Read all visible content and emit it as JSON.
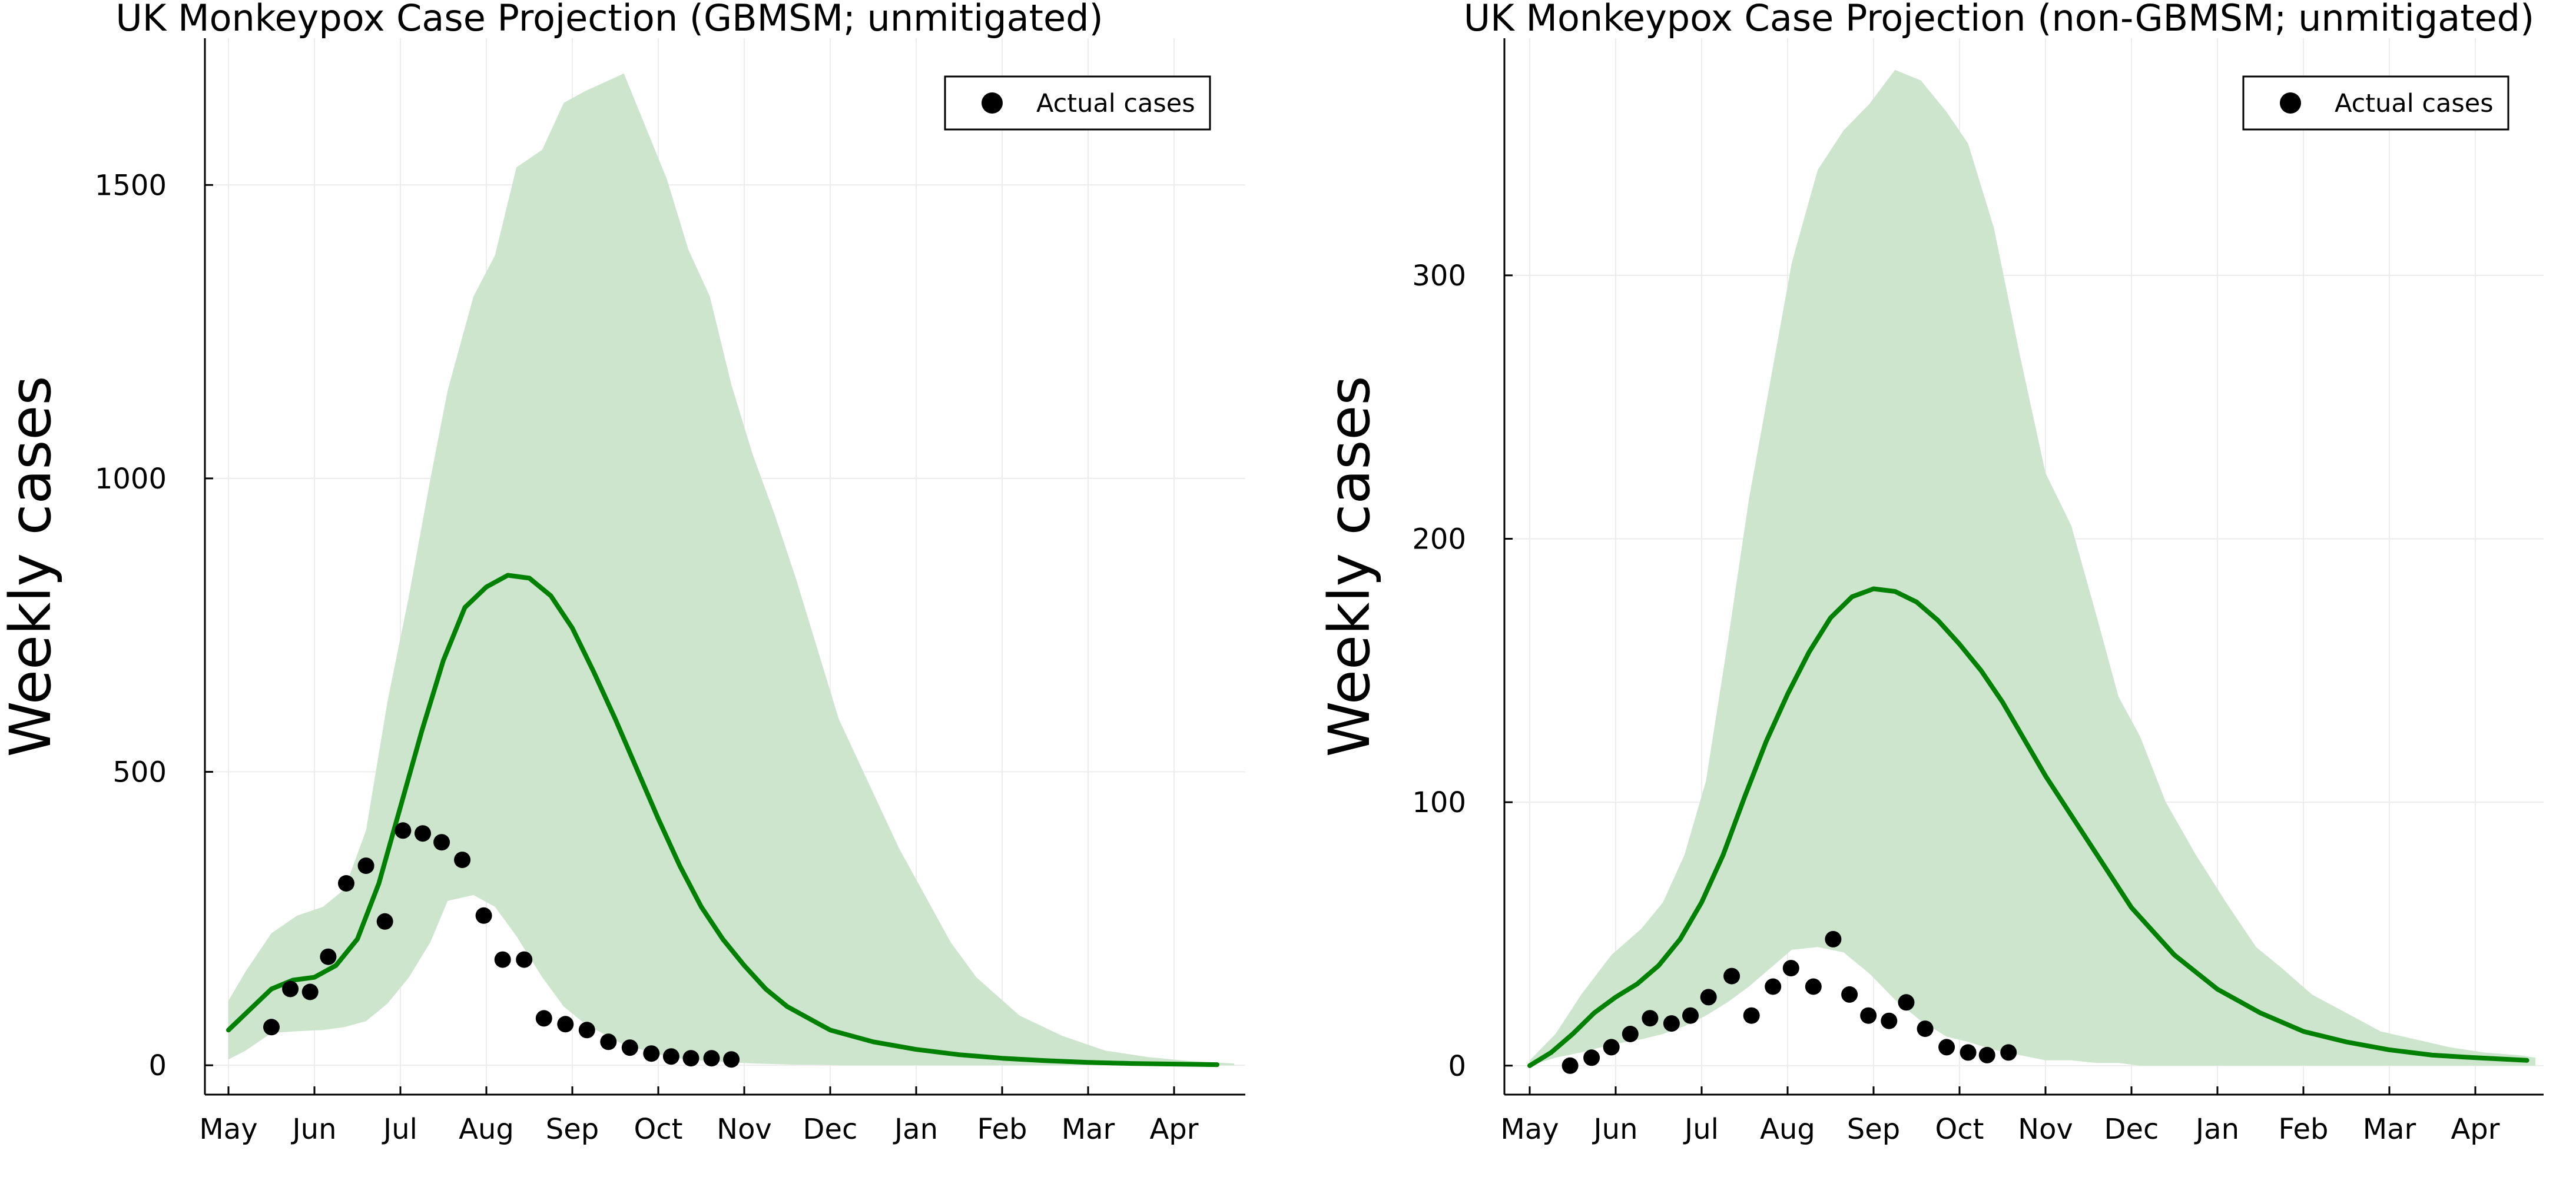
{
  "colors": {
    "line": "#008000",
    "band": "#cde5cd",
    "points": "#000000",
    "grid": "#ececec"
  },
  "chart_data": [
    {
      "type": "line",
      "title": "UK Monkeypox Case Projection (GBMSM; unmitigated)",
      "xlabel": "",
      "ylabel": "Weekly cases",
      "x_ticks": [
        "May",
        "Jun",
        "Jul",
        "Aug",
        "Sep",
        "Oct",
        "Nov",
        "Dec",
        "Jan",
        "Feb",
        "Mar",
        "Apr"
      ],
      "y_ticks": [
        0,
        500,
        1000,
        1500
      ],
      "ylim": [
        -50,
        1750
      ],
      "grid": true,
      "legend": {
        "position": "top-right",
        "entries": [
          "Actual cases"
        ]
      },
      "series": [
        {
          "kind": "band",
          "x": [
            1.0,
            1.2,
            1.5,
            1.8,
            2.1,
            2.35,
            2.6,
            2.85,
            3.1,
            3.35,
            3.55,
            3.85,
            4.1,
            4.35,
            4.65,
            4.9,
            5.15,
            5.6,
            6.1,
            6.35,
            6.6,
            6.85,
            7.1,
            7.35,
            7.6,
            7.85,
            8.1,
            8.45,
            8.8,
            9.1,
            9.4,
            9.7,
            10.2,
            10.7,
            11.2,
            11.7,
            12.2,
            12.7
          ],
          "upper": [
            110,
            160,
            225,
            255,
            270,
            300,
            400,
            620,
            800,
            1000,
            1150,
            1310,
            1380,
            1530,
            1560,
            1640,
            1660,
            1690,
            1510,
            1390,
            1310,
            1160,
            1040,
            940,
            830,
            710,
            590,
            480,
            370,
            290,
            210,
            150,
            85,
            50,
            25,
            14,
            7,
            3
          ],
          "lower": [
            10,
            25,
            55,
            58,
            60,
            65,
            75,
            105,
            150,
            210,
            280,
            290,
            270,
            220,
            150,
            100,
            70,
            35,
            15,
            10,
            7,
            5,
            3,
            2,
            1,
            1,
            0,
            0,
            0,
            0,
            0,
            0,
            0,
            0,
            0,
            0,
            0,
            0
          ]
        },
        {
          "kind": "line",
          "x": [
            1.0,
            1.25,
            1.5,
            1.75,
            2.0,
            2.25,
            2.5,
            2.75,
            3.0,
            3.25,
            3.5,
            3.75,
            4.0,
            4.25,
            4.5,
            4.75,
            5.0,
            5.25,
            5.5,
            5.75,
            6.0,
            6.25,
            6.5,
            6.75,
            7.0,
            7.25,
            7.5,
            7.75,
            8.0,
            8.5,
            9.0,
            9.5,
            10.0,
            10.5,
            11.0,
            11.5,
            12.0,
            12.5
          ],
          "y": [
            60,
            95,
            130,
            145,
            150,
            170,
            215,
            310,
            440,
            570,
            690,
            780,
            815,
            835,
            830,
            800,
            745,
            670,
            590,
            505,
            420,
            340,
            270,
            215,
            170,
            130,
            100,
            80,
            60,
            40,
            27,
            18,
            12,
            8,
            5,
            3,
            2,
            1
          ]
        },
        {
          "kind": "scatter",
          "name": "Actual cases",
          "x": [
            1.5,
            1.72,
            1.95,
            2.16,
            2.37,
            2.6,
            2.82,
            3.03,
            3.26,
            3.48,
            3.72,
            3.97,
            4.19,
            4.44,
            4.67,
            4.92,
            5.17,
            5.42,
            5.67,
            5.92,
            6.15,
            6.38,
            6.62,
            6.85
          ],
          "y": [
            65,
            130,
            125,
            185,
            310,
            340,
            245,
            400,
            395,
            380,
            350,
            255,
            180,
            180,
            80,
            70,
            60,
            40,
            30,
            20,
            15,
            12,
            12,
            10
          ]
        }
      ]
    },
    {
      "type": "line",
      "title": "UK Monkeypox Case Projection (non-GBMSM; unmitigated)",
      "xlabel": "",
      "ylabel": "Weekly cases",
      "x_ticks": [
        "May",
        "Jun",
        "Jul",
        "Aug",
        "Sep",
        "Oct",
        "Nov",
        "Dec",
        "Jan",
        "Feb",
        "Mar",
        "Apr"
      ],
      "y_ticks": [
        0,
        100,
        200,
        300
      ],
      "ylim": [
        -11,
        390
      ],
      "grid": true,
      "legend": {
        "position": "top-right",
        "entries": [
          "Actual cases"
        ]
      },
      "series": [
        {
          "kind": "band",
          "x": [
            1.0,
            1.3,
            1.6,
            1.95,
            2.3,
            2.55,
            2.8,
            3.05,
            3.3,
            3.55,
            3.8,
            4.05,
            4.35,
            4.65,
            4.95,
            5.25,
            5.55,
            5.85,
            6.1,
            6.4,
            6.7,
            7.0,
            7.3,
            7.6,
            7.85,
            8.1,
            8.4,
            8.75,
            9.1,
            9.45,
            9.75,
            10.1,
            10.5,
            10.9,
            11.3,
            11.7,
            12.1,
            12.5,
            12.7
          ],
          "upper": [
            2,
            12,
            27,
            42,
            52,
            62,
            80,
            108,
            160,
            215,
            260,
            305,
            340,
            355,
            365,
            378,
            374,
            362,
            350,
            318,
            270,
            225,
            205,
            170,
            140,
            125,
            100,
            80,
            62,
            45,
            37,
            27,
            20,
            13,
            10,
            7,
            5,
            4,
            3
          ],
          "lower": [
            0,
            3,
            5,
            8,
            10,
            12,
            15,
            19,
            24,
            30,
            37,
            44,
            45,
            43,
            35,
            25,
            17,
            11,
            9,
            6,
            4,
            2,
            2,
            1,
            1,
            0,
            0,
            0,
            0,
            0,
            0,
            0,
            0,
            0,
            0,
            0,
            0,
            0,
            0
          ]
        },
        {
          "kind": "line",
          "x": [
            1.0,
            1.25,
            1.5,
            1.75,
            2.0,
            2.25,
            2.5,
            2.75,
            3.0,
            3.25,
            3.5,
            3.75,
            4.0,
            4.25,
            4.5,
            4.75,
            5.0,
            5.25,
            5.5,
            5.75,
            6.0,
            6.25,
            6.5,
            6.75,
            7.0,
            7.5,
            8.0,
            8.5,
            9.0,
            9.5,
            10.0,
            10.5,
            11.0,
            11.5,
            12.0,
            12.6
          ],
          "y": [
            0,
            5,
            12,
            20,
            26,
            31,
            38,
            48,
            62,
            80,
            102,
            123,
            141,
            157,
            170,
            178,
            181,
            180,
            176,
            169,
            160,
            150,
            138,
            124,
            110,
            85,
            60,
            42,
            29,
            20,
            13,
            9,
            6,
            4,
            3,
            2
          ]
        },
        {
          "kind": "scatter",
          "name": "Actual cases",
          "x": [
            1.47,
            1.72,
            1.95,
            2.17,
            2.4,
            2.65,
            2.87,
            3.08,
            3.35,
            3.58,
            3.83,
            4.04,
            4.3,
            4.53,
            4.72,
            4.94,
            5.18,
            5.38,
            5.6,
            5.85,
            6.1,
            6.32,
            6.57
          ],
          "y": [
            0,
            3,
            7,
            12,
            18,
            16,
            19,
            26,
            34,
            19,
            30,
            37,
            30,
            48,
            27,
            19,
            17,
            24,
            14,
            7,
            5,
            4,
            5
          ]
        }
      ]
    }
  ]
}
